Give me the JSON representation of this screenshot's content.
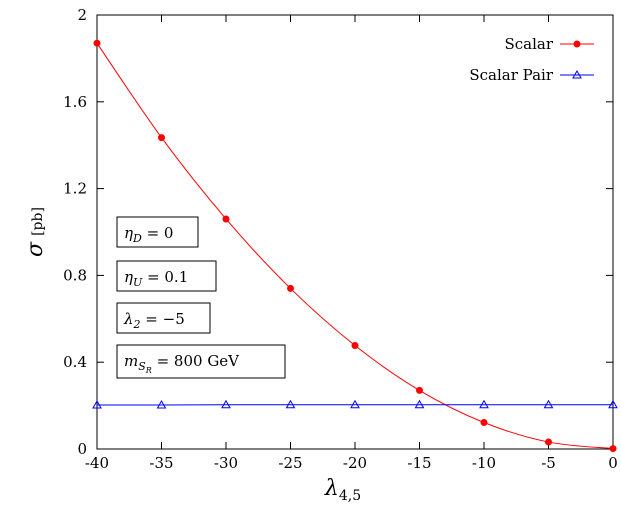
{
  "chart_data": {
    "type": "line",
    "x": [
      -40,
      -35,
      -30,
      -25,
      -20,
      -15,
      -10,
      -5,
      0
    ],
    "xlim": [
      -40,
      0
    ],
    "ylim": [
      0,
      2
    ],
    "xticks": [
      "-40",
      "-35",
      "-30",
      "-25",
      "-20",
      "-15",
      "-10",
      "-5",
      "0"
    ],
    "yticks": [
      "0",
      "0.4",
      "0.8",
      "1.2",
      "1.6",
      "2"
    ],
    "xlabel": "λ",
    "xlabel_sub": "4,5",
    "ylabel": "σ",
    "ylabel_unit": "[pb]",
    "grid": false,
    "legend_position": "top-right",
    "series": [
      {
        "name": "Scalar",
        "color": "#ff0000",
        "marker": "circle",
        "values": [
          1.87,
          1.435,
          1.06,
          0.74,
          0.477,
          0.27,
          0.122,
          0.032,
          0.002
        ]
      },
      {
        "name": "Scalar Pair",
        "color": "#0000ff",
        "marker": "triangle",
        "values": [
          0.203,
          0.203,
          0.204,
          0.204,
          0.204,
          0.204,
          0.204,
          0.204,
          0.204
        ]
      }
    ],
    "annotations": [
      {
        "symbol": "η",
        "sub": "D",
        "rest": " = 0"
      },
      {
        "symbol": "η",
        "sub": "U",
        "rest": " = 0.1"
      },
      {
        "symbol": "λ",
        "sub": "2",
        "rest": " = −5"
      },
      {
        "symbol": "m",
        "sub": "S",
        "subsub": "R",
        "rest": " = 800 GeV"
      }
    ]
  }
}
